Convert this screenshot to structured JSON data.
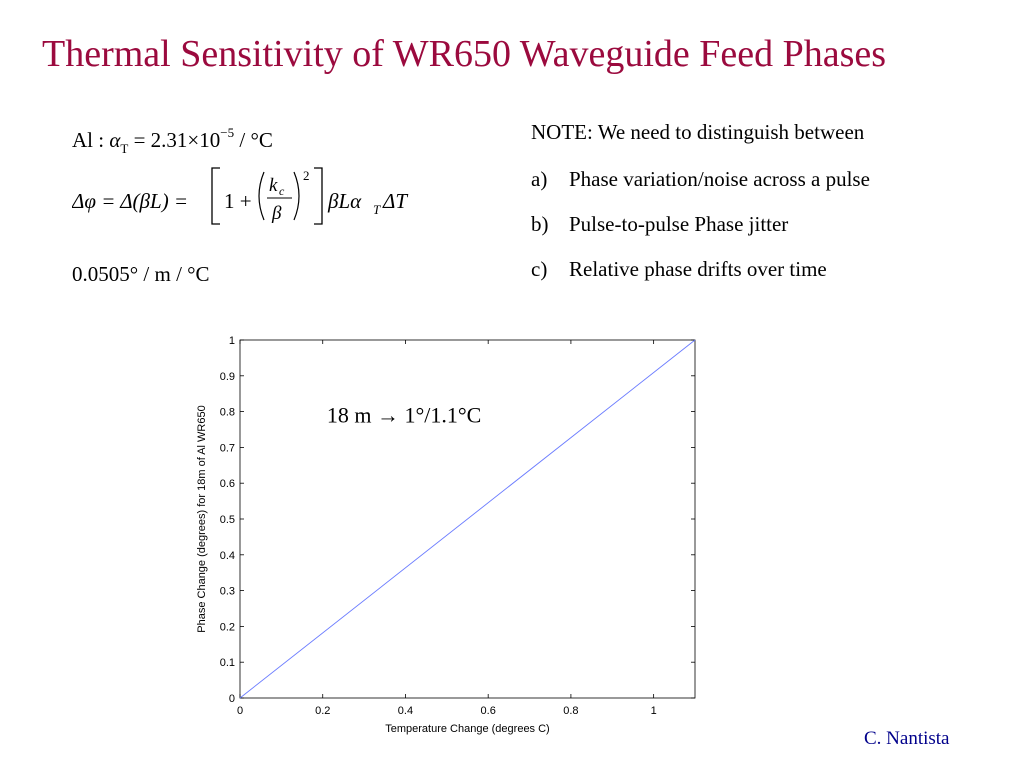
{
  "slide": {
    "title": "Thermal Sensitivity of WR650 Waveguide Feed Phases",
    "author": "C. Nantista"
  },
  "equations": {
    "line1": {
      "label": "Al :",
      "symbol": "α",
      "subscript": "T",
      "relation": "= 2.31×10",
      "exponent": "−5",
      "unit": "/ °C"
    },
    "line2": {
      "lhs": "Δφ = Δ(βL) =",
      "one_plus": "1 +",
      "numerator": "k",
      "numerator_sub": "c",
      "denominator": "β",
      "power": "2",
      "rhs": "βLα",
      "rhs_sub": "T",
      "rhs_tail": "ΔT"
    },
    "line3": "0.0505° / m / °C"
  },
  "notes": {
    "heading": "NOTE: We need to distinguish between",
    "items": [
      {
        "label": "a)",
        "text": "Phase variation/noise across a pulse"
      },
      {
        "label": "b)",
        "text": "Pulse-to-pulse Phase jitter"
      },
      {
        "label": "c)",
        "text": "Relative phase drifts over time"
      }
    ]
  },
  "chart_data": {
    "type": "line",
    "xlabel": "Temperature Change (degrees C)",
    "ylabel": "Phase Change (degrees) for 18m of Al WR650",
    "xlim": [
      0,
      1.1
    ],
    "ylim": [
      0,
      1
    ],
    "xticks": [
      "0",
      "0.2",
      "0.4",
      "0.6",
      "0.8",
      "1"
    ],
    "xtick_values": [
      0,
      0.2,
      0.4,
      0.6,
      0.8,
      1
    ],
    "yticks": [
      "0",
      "0.1",
      "0.2",
      "0.3",
      "0.4",
      "0.5",
      "0.6",
      "0.7",
      "0.8",
      "0.9",
      "1"
    ],
    "ytick_values": [
      0,
      0.1,
      0.2,
      0.3,
      0.4,
      0.5,
      0.6,
      0.7,
      0.8,
      0.9,
      1
    ],
    "annotation": "18 m → 1°/1.1°C",
    "grid": false,
    "series": [
      {
        "x": [
          0,
          1.1
        ],
        "y": [
          0,
          1
        ],
        "color": "#6a7bff"
      }
    ]
  }
}
